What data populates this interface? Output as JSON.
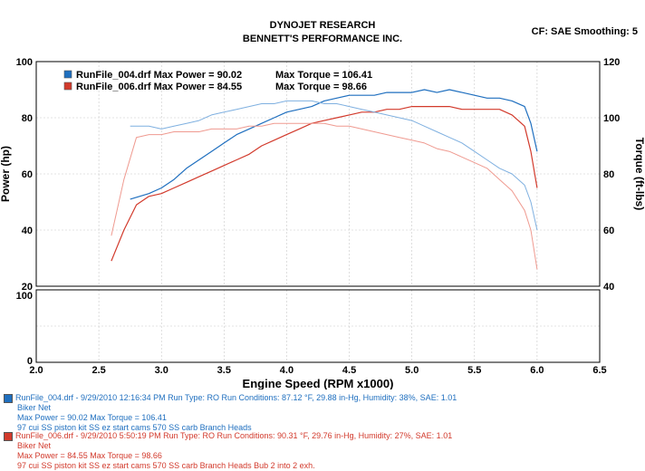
{
  "header": {
    "title": "DYNOJET RESEARCH",
    "subtitle": "BENNETT'S PERFORMANCE INC.",
    "cf": "CF: SAE  Smoothing: 5"
  },
  "colors": {
    "run1": "#1f6fbf",
    "run2": "#d23a2c",
    "run1_light": "#7fb0e0",
    "run2_light": "#ef9a90"
  },
  "legend": [
    {
      "label": "RunFile_004.drf Max Power = 90.02",
      "torque": "Max Torque = 106.41"
    },
    {
      "label": "RunFile_006.drf Max Power = 84.55",
      "torque": "Max Torque = 98.66"
    }
  ],
  "info": {
    "run1": {
      "line1": "RunFile_004.drf - 9/29/2010 12:16:34 PM  Run Type: RO  Run Conditions: 87.12 °F, 29.88 in-Hg,  Humidity:  38%, SAE: 1.01",
      "line2": "Biker Net",
      "line3": "Max Power = 90.02  Max Torque = 106.41",
      "line4": "97 cui SS piston kit SS ez start cams 570 SS carb Branch Heads"
    },
    "run2": {
      "line1": "RunFile_006.drf - 9/29/2010 5:50:19 PM  Run Type: RO  Run Conditions: 90.31 °F, 29.76 in-Hg,  Humidity:  27%, SAE: 1.01",
      "line2": "Biker Net",
      "line3": "Max Power = 84.55  Max Torque = 98.66",
      "line4": "97 cui SS piston kit SS ez start cams 570 SS carb Branch Heads Bub 2 into 2 exh."
    }
  },
  "chart_data": {
    "type": "line",
    "xlabel": "Engine Speed (RPM x1000)",
    "ylabel": "Power (hp)",
    "y2label": "Torque (ft-lbs)",
    "xlim": [
      2.0,
      6.5
    ],
    "ylim": [
      20,
      100
    ],
    "y2lim": [
      40,
      120
    ],
    "x_ticks": [
      "2.0",
      "2.5",
      "3.0",
      "3.5",
      "4.0",
      "4.5",
      "5.0",
      "5.5",
      "6.0",
      "6.5"
    ],
    "y_ticks": [
      "100",
      "80",
      "60",
      "40",
      "20"
    ],
    "y2_ticks": [
      "120",
      "100",
      "80",
      "60",
      "40"
    ],
    "lower_y_ticks": [
      "100",
      "0"
    ],
    "grid": true,
    "legend_position": "top-left",
    "series": [
      {
        "name": "RunFile_004.drf",
        "measure": "power",
        "axis": "left",
        "points": [
          [
            2.75,
            51
          ],
          [
            2.9,
            53
          ],
          [
            3.0,
            55
          ],
          [
            3.1,
            58
          ],
          [
            3.2,
            62
          ],
          [
            3.3,
            65
          ],
          [
            3.4,
            68
          ],
          [
            3.5,
            71
          ],
          [
            3.6,
            74
          ],
          [
            3.7,
            76
          ],
          [
            3.8,
            78
          ],
          [
            3.9,
            80
          ],
          [
            4.0,
            82
          ],
          [
            4.1,
            83
          ],
          [
            4.2,
            84
          ],
          [
            4.3,
            86
          ],
          [
            4.4,
            87
          ],
          [
            4.5,
            88
          ],
          [
            4.6,
            88
          ],
          [
            4.7,
            88
          ],
          [
            4.8,
            89
          ],
          [
            4.9,
            89
          ],
          [
            5.0,
            89
          ],
          [
            5.1,
            90
          ],
          [
            5.2,
            89
          ],
          [
            5.3,
            90
          ],
          [
            5.4,
            89
          ],
          [
            5.5,
            88
          ],
          [
            5.6,
            87
          ],
          [
            5.7,
            87
          ],
          [
            5.8,
            86
          ],
          [
            5.9,
            84
          ],
          [
            5.95,
            78
          ],
          [
            6.0,
            68
          ]
        ]
      },
      {
        "name": "RunFile_006.drf",
        "measure": "power",
        "axis": "left",
        "points": [
          [
            2.6,
            29
          ],
          [
            2.7,
            40
          ],
          [
            2.8,
            49
          ],
          [
            2.9,
            52
          ],
          [
            3.0,
            53
          ],
          [
            3.1,
            55
          ],
          [
            3.2,
            57
          ],
          [
            3.3,
            59
          ],
          [
            3.4,
            61
          ],
          [
            3.5,
            63
          ],
          [
            3.6,
            65
          ],
          [
            3.7,
            67
          ],
          [
            3.8,
            70
          ],
          [
            3.9,
            72
          ],
          [
            4.0,
            74
          ],
          [
            4.1,
            76
          ],
          [
            4.2,
            78
          ],
          [
            4.3,
            79
          ],
          [
            4.4,
            80
          ],
          [
            4.5,
            81
          ],
          [
            4.6,
            82
          ],
          [
            4.7,
            82
          ],
          [
            4.8,
            83
          ],
          [
            4.9,
            83
          ],
          [
            5.0,
            84
          ],
          [
            5.1,
            84
          ],
          [
            5.2,
            84
          ],
          [
            5.3,
            84
          ],
          [
            5.4,
            83
          ],
          [
            5.5,
            83
          ],
          [
            5.6,
            83
          ],
          [
            5.7,
            83
          ],
          [
            5.8,
            81
          ],
          [
            5.9,
            77
          ],
          [
            5.95,
            68
          ],
          [
            6.0,
            55
          ]
        ]
      },
      {
        "name": "RunFile_004.drf",
        "measure": "torque",
        "axis": "right",
        "points": [
          [
            2.75,
            97
          ],
          [
            2.9,
            97
          ],
          [
            3.0,
            96
          ],
          [
            3.1,
            97
          ],
          [
            3.2,
            98
          ],
          [
            3.3,
            99
          ],
          [
            3.4,
            101
          ],
          [
            3.5,
            102
          ],
          [
            3.6,
            103
          ],
          [
            3.7,
            104
          ],
          [
            3.8,
            105
          ],
          [
            3.9,
            105
          ],
          [
            4.0,
            106
          ],
          [
            4.1,
            106
          ],
          [
            4.2,
            106
          ],
          [
            4.3,
            105
          ],
          [
            4.4,
            105
          ],
          [
            4.5,
            104
          ],
          [
            4.6,
            103
          ],
          [
            4.7,
            102
          ],
          [
            4.8,
            101
          ],
          [
            4.9,
            100
          ],
          [
            5.0,
            99
          ],
          [
            5.1,
            97
          ],
          [
            5.2,
            95
          ],
          [
            5.3,
            93
          ],
          [
            5.4,
            91
          ],
          [
            5.5,
            88
          ],
          [
            5.6,
            85
          ],
          [
            5.7,
            82
          ],
          [
            5.8,
            80
          ],
          [
            5.9,
            76
          ],
          [
            5.95,
            70
          ],
          [
            6.0,
            60
          ]
        ]
      },
      {
        "name": "RunFile_006.drf",
        "measure": "torque",
        "axis": "right",
        "points": [
          [
            2.6,
            58
          ],
          [
            2.7,
            78
          ],
          [
            2.8,
            93
          ],
          [
            2.9,
            94
          ],
          [
            3.0,
            94
          ],
          [
            3.1,
            95
          ],
          [
            3.2,
            95
          ],
          [
            3.3,
            95
          ],
          [
            3.4,
            96
          ],
          [
            3.5,
            96
          ],
          [
            3.6,
            96
          ],
          [
            3.7,
            97
          ],
          [
            3.8,
            97
          ],
          [
            3.9,
            98
          ],
          [
            4.0,
            98
          ],
          [
            4.1,
            98
          ],
          [
            4.2,
            98
          ],
          [
            4.3,
            98
          ],
          [
            4.4,
            97
          ],
          [
            4.5,
            97
          ],
          [
            4.6,
            96
          ],
          [
            4.7,
            95
          ],
          [
            4.8,
            94
          ],
          [
            4.9,
            93
          ],
          [
            5.0,
            92
          ],
          [
            5.1,
            91
          ],
          [
            5.2,
            89
          ],
          [
            5.3,
            88
          ],
          [
            5.4,
            86
          ],
          [
            5.5,
            84
          ],
          [
            5.6,
            82
          ],
          [
            5.7,
            78
          ],
          [
            5.8,
            74
          ],
          [
            5.9,
            67
          ],
          [
            5.95,
            60
          ],
          [
            6.0,
            46
          ]
        ]
      }
    ]
  }
}
